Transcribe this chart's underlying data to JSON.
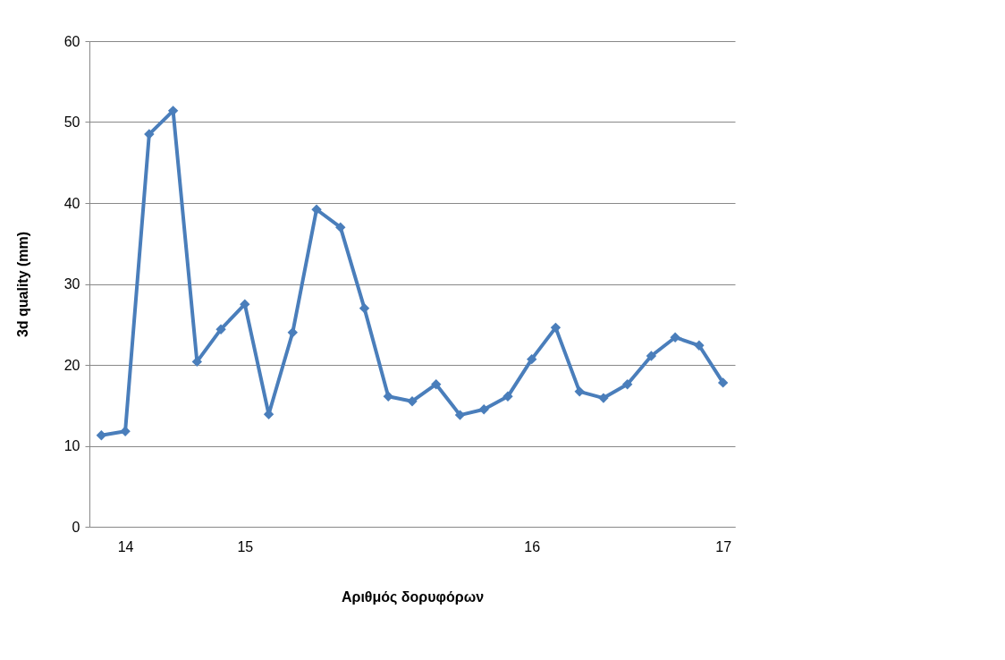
{
  "chart_data": {
    "type": "line",
    "xlabel": "Αριθμός δορυφόρων",
    "ylabel": "3d quality (mm)",
    "categories": [
      null,
      "14",
      null,
      null,
      null,
      null,
      "15",
      null,
      null,
      null,
      null,
      null,
      null,
      null,
      null,
      null,
      null,
      null,
      "16",
      null,
      null,
      null,
      null,
      null,
      null,
      null,
      "17"
    ],
    "series": [
      {
        "color": "#4a7ebb",
        "values": [
          11.3,
          11.8,
          48.5,
          51.4,
          20.4,
          24.4,
          27.5,
          13.9,
          24.0,
          39.2,
          37.0,
          27.0,
          16.1,
          15.5,
          17.6,
          13.8,
          14.5,
          16.1,
          20.7,
          24.6,
          16.7,
          15.9,
          17.6,
          21.1,
          23.4,
          22.4,
          17.8
        ]
      }
    ],
    "ylim": [
      0,
      60
    ],
    "yticks": [
      0,
      10,
      20,
      30,
      40,
      50,
      60
    ],
    "grid": "y",
    "marker": "diamond",
    "line_style": "solid"
  }
}
